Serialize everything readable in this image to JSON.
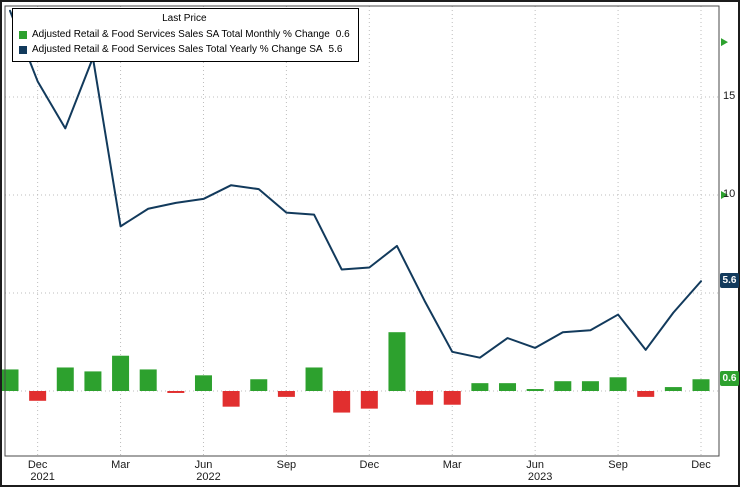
{
  "legend": {
    "title": "Last Price",
    "items": [
      {
        "label": "Adjusted Retail & Food Services Sales SA Total Monthly % Change",
        "value": "0.6",
        "color": "#2da12e",
        "type": "bar"
      },
      {
        "label": "Adjusted Retail & Food Services Sales Total Yearly % Change SA",
        "value": "5.6",
        "color": "#123a5c",
        "type": "line"
      }
    ]
  },
  "y_axis": {
    "side": "right",
    "labels": [
      {
        "text": "15",
        "value": 15
      },
      {
        "text": "10",
        "value": 10
      }
    ],
    "badges": [
      {
        "text": "5.6",
        "value": 5.6,
        "color": "#123a5c"
      },
      {
        "text": "0.6",
        "value": 0.6,
        "color": "#2da12e"
      }
    ],
    "markers": [
      {
        "value": 17.8,
        "color": "#2da12e"
      },
      {
        "value": 10.0,
        "color": "#2da12e"
      }
    ]
  },
  "x_axis": {
    "ticks": [
      {
        "label": "Dec",
        "index": 1
      },
      {
        "label": "Mar",
        "index": 4
      },
      {
        "label": "Jun",
        "index": 7
      },
      {
        "label": "Sep",
        "index": 10
      },
      {
        "label": "Dec",
        "index": 13
      },
      {
        "label": "Mar",
        "index": 16
      },
      {
        "label": "Jun",
        "index": 19
      },
      {
        "label": "Sep",
        "index": 22
      },
      {
        "label": "Dec",
        "index": 25
      }
    ],
    "years": [
      {
        "label": "2021",
        "index": 1
      },
      {
        "label": "2022",
        "index": 7
      },
      {
        "label": "2023",
        "index": 19
      }
    ]
  },
  "colors": {
    "up": "#2da12e",
    "down": "#e12f2f",
    "line": "#123a5c",
    "grid": "#bdbdbd",
    "frame": "#1c1c1c",
    "background": "#ffffff"
  },
  "chart_data": {
    "type": "combo",
    "title": "Last Price",
    "x": [
      "Nov 2021",
      "Dec 2021",
      "Jan 2022",
      "Feb 2022",
      "Mar 2022",
      "Apr 2022",
      "May 2022",
      "Jun 2022",
      "Jul 2022",
      "Aug 2022",
      "Sep 2022",
      "Oct 2022",
      "Nov 2022",
      "Dec 2022",
      "Jan 2023",
      "Feb 2023",
      "Mar 2023",
      "Apr 2023",
      "May 2023",
      "Jun 2023",
      "Jul 2023",
      "Aug 2023",
      "Sep 2023",
      "Oct 2023",
      "Nov 2023",
      "Dec 2023"
    ],
    "series": [
      {
        "name": "Adjusted Retail & Food Services Sales SA Total Monthly % Change",
        "type": "bar",
        "last": 0.6,
        "positive_color": "#2da12e",
        "negative_color": "#e12f2f",
        "values": [
          1.1,
          -0.5,
          1.2,
          1.0,
          1.8,
          1.1,
          -0.1,
          0.8,
          -0.8,
          0.6,
          -0.3,
          1.2,
          -1.1,
          -0.9,
          3.0,
          -0.7,
          -0.7,
          0.4,
          0.4,
          0.1,
          0.5,
          0.5,
          0.7,
          -0.3,
          0.2,
          0.6
        ]
      },
      {
        "name": "Adjusted Retail & Food Services Sales Total Yearly % Change SA",
        "type": "line",
        "last": 5.6,
        "color": "#123a5c",
        "values": [
          19.4,
          15.8,
          13.4,
          17.0,
          8.4,
          9.3,
          9.6,
          9.8,
          10.5,
          10.3,
          9.1,
          9.0,
          6.2,
          6.3,
          7.4,
          4.6,
          2.0,
          1.7,
          2.7,
          2.2,
          3.0,
          3.1,
          3.9,
          2.1,
          4.0,
          5.6
        ]
      }
    ],
    "ylim": [
      -3.3,
      19.6
    ],
    "gridlines_y": [
      0,
      5,
      10,
      15
    ],
    "grid": "dotted",
    "legend_position": "top-left",
    "y_axis_side": "right"
  }
}
